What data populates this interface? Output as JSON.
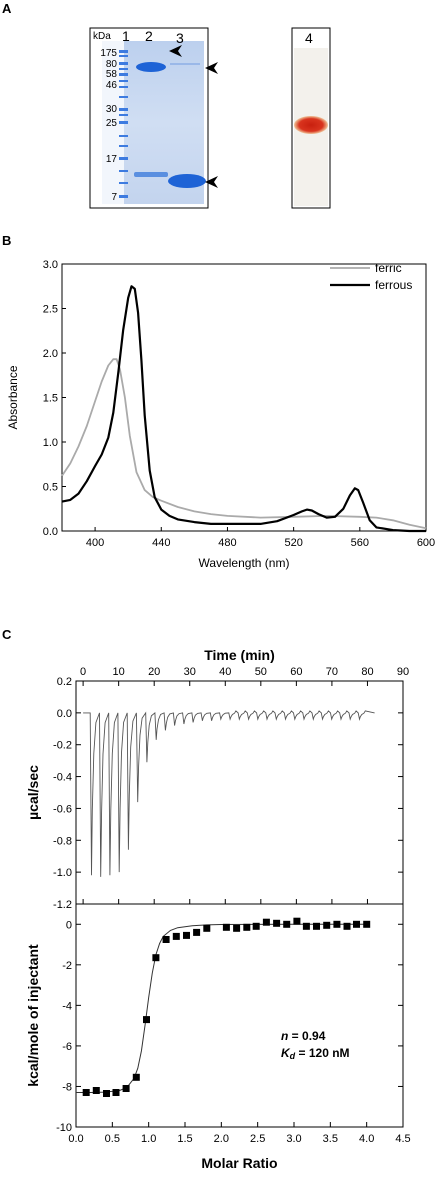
{
  "panels": {
    "A": {
      "label": "A",
      "gel": {
        "kda_label": "kDa",
        "lane_labels": [
          "1",
          "2",
          "3"
        ],
        "ladder_markers": [
          "175",
          "80",
          "58",
          "46",
          "30",
          "25",
          "17",
          "7"
        ]
      },
      "blot": {
        "lane_label": "4"
      }
    },
    "B": {
      "label": "B"
    },
    "C": {
      "label": "C"
    }
  },
  "colors": {
    "ferric": "#aaaaaa",
    "ferrous": "#000000",
    "gel_background": "#c8d8ef",
    "gel_band": "#1e63d6",
    "heme_band": "#d9341e"
  },
  "chart_data": [
    {
      "id": "B",
      "type": "line",
      "xlabel": "Wavelength (nm)",
      "ylabel": "Absorbance",
      "xlim": [
        380,
        600
      ],
      "ylim": [
        0.0,
        3.0
      ],
      "xticks": [
        400,
        440,
        480,
        520,
        560,
        600
      ],
      "yticks": [
        0.0,
        0.5,
        1.0,
        1.5,
        2.0,
        2.5,
        3.0
      ],
      "ytick_labels": [
        "0.0",
        "0.5",
        "1.0",
        "1.5",
        "2.0",
        "2.5",
        "3.0"
      ],
      "legend": "top-right",
      "series": [
        {
          "name": "ferric",
          "color": "#aaaaaa",
          "x": [
            380,
            385,
            390,
            395,
            400,
            404,
            408,
            411,
            413,
            415,
            418,
            421,
            425,
            430,
            435,
            440,
            450,
            460,
            470,
            480,
            500,
            520,
            540,
            560,
            570,
            580,
            590,
            600
          ],
          "y": [
            0.62,
            0.76,
            0.95,
            1.18,
            1.46,
            1.68,
            1.86,
            1.93,
            1.93,
            1.82,
            1.5,
            1.07,
            0.66,
            0.46,
            0.38,
            0.34,
            0.27,
            0.22,
            0.19,
            0.17,
            0.15,
            0.16,
            0.17,
            0.16,
            0.15,
            0.12,
            0.07,
            0.03
          ]
        },
        {
          "name": "ferrous",
          "color": "#000000",
          "x": [
            380,
            385,
            390,
            395,
            400,
            404,
            408,
            411,
            414,
            417,
            420,
            422,
            424,
            426,
            428,
            430,
            433,
            436,
            440,
            445,
            450,
            460,
            470,
            480,
            490,
            500,
            510,
            520,
            525,
            528,
            531,
            535,
            540,
            545,
            550,
            554,
            557,
            559,
            562,
            566,
            570,
            580,
            590,
            600
          ],
          "y": [
            0.33,
            0.35,
            0.42,
            0.56,
            0.73,
            0.86,
            1.05,
            1.33,
            1.78,
            2.26,
            2.62,
            2.75,
            2.72,
            2.45,
            1.92,
            1.3,
            0.68,
            0.38,
            0.24,
            0.17,
            0.13,
            0.1,
            0.08,
            0.08,
            0.08,
            0.08,
            0.11,
            0.18,
            0.22,
            0.24,
            0.23,
            0.19,
            0.15,
            0.16,
            0.25,
            0.4,
            0.48,
            0.46,
            0.32,
            0.12,
            0.04,
            0.01,
            0.0,
            0.0
          ]
        }
      ]
    },
    {
      "id": "C-top",
      "type": "line",
      "xlabel": "Time (min)",
      "ylabel": "µcal/sec",
      "xlim": [
        -2,
        90
      ],
      "ylim": [
        -1.2,
        0.2
      ],
      "xticks": [
        0,
        10,
        20,
        30,
        40,
        50,
        60,
        70,
        80,
        90
      ],
      "yticks": [
        0.2,
        0.0,
        -0.2,
        -0.4,
        -0.6,
        -0.8,
        -1.0,
        -1.2
      ],
      "ytick_labels": [
        "0.2",
        "0.0",
        "-0.2",
        "-0.4",
        "-0.6",
        "-0.8",
        "-1.0",
        "-1.2"
      ],
      "injection_interval_min": 2.6,
      "injection_start_min": 2.0,
      "peak_depths": [
        -1.02,
        -1.03,
        -1.02,
        -1.0,
        -0.86,
        -0.56,
        -0.31,
        -0.17,
        -0.11,
        -0.08,
        -0.07,
        -0.06,
        -0.05,
        -0.05,
        -0.04,
        -0.04,
        -0.04,
        -0.04,
        -0.04,
        -0.04,
        -0.04,
        -0.04,
        -0.04,
        -0.04,
        -0.04,
        -0.04,
        -0.04,
        -0.04,
        -0.04,
        -0.04
      ]
    },
    {
      "id": "C-bottom",
      "type": "scatter",
      "xlabel": "Molar Ratio",
      "ylabel": "kcal/mole of injectant",
      "xlim": [
        0.0,
        4.5
      ],
      "ylim": [
        -10,
        1
      ],
      "xticks": [
        0.0,
        0.5,
        1.0,
        1.5,
        2.0,
        2.5,
        3.0,
        3.5,
        4.0,
        4.5
      ],
      "xtick_labels": [
        "0.0",
        "0.5",
        "1.0",
        "1.5",
        "2.0",
        "2.5",
        "3.0",
        "3.5",
        "4.0",
        "4.5"
      ],
      "yticks": [
        0,
        -2,
        -4,
        -6,
        -8,
        -10
      ],
      "ytick_labels": [
        "0",
        "-2",
        "-4",
        "-6",
        "-8",
        "-10"
      ],
      "points": {
        "x": [
          0.14,
          0.28,
          0.42,
          0.55,
          0.69,
          0.83,
          0.97,
          1.1,
          1.24,
          1.38,
          1.52,
          1.66,
          1.8,
          2.07,
          2.21,
          2.35,
          2.48,
          2.62,
          2.76,
          2.9,
          3.04,
          3.17,
          3.31,
          3.45,
          3.59,
          3.73,
          3.86,
          4.0
        ],
        "y": [
          -8.3,
          -8.2,
          -8.35,
          -8.3,
          -8.1,
          -7.55,
          -4.7,
          -1.65,
          -0.75,
          -0.6,
          -0.55,
          -0.4,
          -0.2,
          -0.15,
          -0.2,
          -0.15,
          -0.1,
          0.1,
          0.05,
          0.0,
          0.15,
          -0.1,
          -0.1,
          -0.05,
          0.0,
          -0.1,
          0.0,
          0.0
        ]
      },
      "fit": {
        "x": [
          0.0,
          0.2,
          0.4,
          0.6,
          0.7,
          0.8,
          0.85,
          0.9,
          0.95,
          1.0,
          1.05,
          1.1,
          1.15,
          1.2,
          1.3,
          1.4,
          1.6,
          1.8,
          2.0,
          3.0,
          4.0
        ],
        "y": [
          -8.3,
          -8.3,
          -8.28,
          -8.2,
          -8.05,
          -7.6,
          -7.1,
          -6.25,
          -5.0,
          -3.6,
          -2.4,
          -1.5,
          -0.95,
          -0.6,
          -0.3,
          -0.17,
          -0.07,
          -0.03,
          -0.01,
          0.0,
          0.0
        ]
      },
      "annotations": {
        "n_symbol": "n",
        "n_text": " = 0.94",
        "kd_symbol": "K",
        "kd_sub": "d",
        "kd_text": " = 120 nM"
      }
    }
  ]
}
